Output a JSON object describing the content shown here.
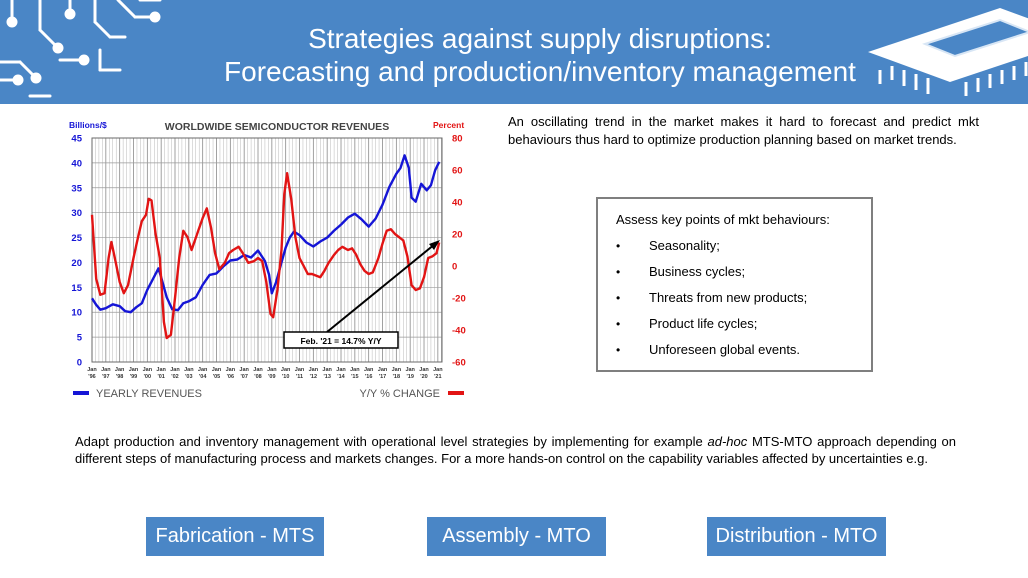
{
  "header": {
    "title_line1": "Strategies against supply disruptions:",
    "title_line2": "Forecasting and production/inventory management"
  },
  "chart_data": {
    "type": "line",
    "title": "WORLDWIDE SEMICONDUCTOR REVENUES",
    "left_axis_label": "Billions/$",
    "right_axis_label": "Percent",
    "left_ylim": [
      0,
      45
    ],
    "left_ticks": [
      "0",
      "5",
      "10",
      "15",
      "20",
      "25",
      "30",
      "35",
      "40",
      "45"
    ],
    "right_ylim": [
      -60,
      80
    ],
    "right_ticks": [
      "-60",
      "-40",
      "-20",
      "0",
      "20",
      "40",
      "60",
      "80"
    ],
    "grid": true,
    "x_year_labels": [
      "'96",
      "'97",
      "'98",
      "'99",
      "'00",
      "'01",
      "'02",
      "'03",
      "'04",
      "'05",
      "'06",
      "'07",
      "'08",
      "'09",
      "'10",
      "'11",
      "'12",
      "'13",
      "'14",
      "'15",
      "'16",
      "'17",
      "'18",
      "'19",
      "'20",
      "'21"
    ],
    "x_month_label": "Jan",
    "legend": {
      "left": "YEARLY REVENUES",
      "right": "Y/Y % CHANGE",
      "placement": "bottom"
    },
    "annotation": "Feb. '21 = 14.7% Y/Y",
    "series": [
      {
        "name": "YEARLY REVENUES",
        "axis": "left",
        "color": "#1515d6",
        "points": [
          [
            1996.0,
            12.8
          ],
          [
            1996.3,
            11.5
          ],
          [
            1996.6,
            10.5
          ],
          [
            1997.0,
            10.8
          ],
          [
            1997.5,
            11.6
          ],
          [
            1998.0,
            11.2
          ],
          [
            1998.4,
            10.2
          ],
          [
            1998.8,
            10.0
          ],
          [
            1999.2,
            11.0
          ],
          [
            1999.6,
            11.8
          ],
          [
            2000.0,
            14.5
          ],
          [
            2000.5,
            17.2
          ],
          [
            2000.8,
            18.8
          ],
          [
            2001.0,
            17.0
          ],
          [
            2001.4,
            13.0
          ],
          [
            2001.8,
            10.6
          ],
          [
            2002.2,
            10.4
          ],
          [
            2002.6,
            11.8
          ],
          [
            2003.0,
            12.2
          ],
          [
            2003.5,
            13.0
          ],
          [
            2004.0,
            15.5
          ],
          [
            2004.5,
            17.5
          ],
          [
            2005.0,
            17.8
          ],
          [
            2005.5,
            19.2
          ],
          [
            2006.0,
            20.4
          ],
          [
            2006.5,
            20.6
          ],
          [
            2007.0,
            21.5
          ],
          [
            2007.5,
            21.0
          ],
          [
            2008.0,
            22.4
          ],
          [
            2008.5,
            20.3
          ],
          [
            2008.8,
            17.5
          ],
          [
            2009.0,
            13.8
          ],
          [
            2009.3,
            16.0
          ],
          [
            2009.7,
            20.0
          ],
          [
            2010.0,
            23.0
          ],
          [
            2010.3,
            25.0
          ],
          [
            2010.6,
            26.2
          ],
          [
            2011.0,
            25.5
          ],
          [
            2011.5,
            24.0
          ],
          [
            2012.0,
            23.2
          ],
          [
            2012.5,
            24.2
          ],
          [
            2013.0,
            25.0
          ],
          [
            2013.5,
            26.4
          ],
          [
            2014.0,
            27.6
          ],
          [
            2014.5,
            29.0
          ],
          [
            2015.0,
            29.8
          ],
          [
            2015.5,
            28.6
          ],
          [
            2016.0,
            27.2
          ],
          [
            2016.5,
            28.8
          ],
          [
            2017.0,
            31.6
          ],
          [
            2017.5,
            35.2
          ],
          [
            2018.0,
            37.8
          ],
          [
            2018.3,
            39.0
          ],
          [
            2018.6,
            41.5
          ],
          [
            2018.9,
            39.0
          ],
          [
            2019.1,
            33.0
          ],
          [
            2019.4,
            32.2
          ],
          [
            2019.8,
            35.8
          ],
          [
            2020.2,
            34.5
          ],
          [
            2020.5,
            35.5
          ],
          [
            2020.8,
            38.5
          ],
          [
            2021.1,
            40.2
          ]
        ]
      },
      {
        "name": "Y/Y % CHANGE",
        "axis": "right",
        "color": "#e21414",
        "points": [
          [
            1996.0,
            32.0
          ],
          [
            1996.3,
            -8.0
          ],
          [
            1996.6,
            -18.0
          ],
          [
            1996.9,
            -17.0
          ],
          [
            1997.2,
            5.0
          ],
          [
            1997.4,
            15.0
          ],
          [
            1997.7,
            3.0
          ],
          [
            1998.0,
            -10.0
          ],
          [
            1998.3,
            -17.0
          ],
          [
            1998.6,
            -12.0
          ],
          [
            1999.0,
            5.0
          ],
          [
            1999.3,
            17.0
          ],
          [
            1999.6,
            28.0
          ],
          [
            1999.9,
            32.0
          ],
          [
            2000.1,
            42.0
          ],
          [
            2000.3,
            41.0
          ],
          [
            2000.6,
            20.0
          ],
          [
            2000.9,
            5.0
          ],
          [
            2001.2,
            -35.0
          ],
          [
            2001.4,
            -45.0
          ],
          [
            2001.7,
            -43.0
          ],
          [
            2002.0,
            -20.0
          ],
          [
            2002.3,
            5.0
          ],
          [
            2002.6,
            22.0
          ],
          [
            2002.9,
            18.0
          ],
          [
            2003.2,
            10.0
          ],
          [
            2003.6,
            20.0
          ],
          [
            2004.0,
            30.0
          ],
          [
            2004.3,
            36.0
          ],
          [
            2004.6,
            24.0
          ],
          [
            2004.9,
            8.0
          ],
          [
            2005.2,
            -2.0
          ],
          [
            2005.6,
            2.0
          ],
          [
            2005.9,
            8.0
          ],
          [
            2006.2,
            10.0
          ],
          [
            2006.6,
            12.0
          ],
          [
            2006.9,
            8.0
          ],
          [
            2007.3,
            2.0
          ],
          [
            2007.7,
            3.0
          ],
          [
            2008.0,
            5.0
          ],
          [
            2008.3,
            3.0
          ],
          [
            2008.6,
            -10.0
          ],
          [
            2008.9,
            -30.0
          ],
          [
            2009.1,
            -32.0
          ],
          [
            2009.4,
            -15.0
          ],
          [
            2009.7,
            10.0
          ],
          [
            2009.9,
            45.0
          ],
          [
            2010.1,
            58.0
          ],
          [
            2010.4,
            42.0
          ],
          [
            2010.7,
            18.0
          ],
          [
            2011.0,
            5.0
          ],
          [
            2011.3,
            0.0
          ],
          [
            2011.6,
            -5.0
          ],
          [
            2011.9,
            -5.0
          ],
          [
            2012.2,
            -6.0
          ],
          [
            2012.5,
            -7.0
          ],
          [
            2012.8,
            -3.0
          ],
          [
            2013.1,
            2.0
          ],
          [
            2013.5,
            7.0
          ],
          [
            2013.8,
            10.0
          ],
          [
            2014.1,
            12.0
          ],
          [
            2014.5,
            10.0
          ],
          [
            2014.8,
            11.0
          ],
          [
            2015.1,
            7.0
          ],
          [
            2015.4,
            1.0
          ],
          [
            2015.7,
            -3.0
          ],
          [
            2016.0,
            -5.0
          ],
          [
            2016.3,
            -4.0
          ],
          [
            2016.7,
            5.0
          ],
          [
            2017.0,
            14.0
          ],
          [
            2017.3,
            22.0
          ],
          [
            2017.6,
            23.0
          ],
          [
            2017.9,
            20.0
          ],
          [
            2018.2,
            18.0
          ],
          [
            2018.5,
            16.0
          ],
          [
            2018.8,
            6.0
          ],
          [
            2019.1,
            -12.0
          ],
          [
            2019.4,
            -15.0
          ],
          [
            2019.7,
            -14.0
          ],
          [
            2020.0,
            -7.0
          ],
          [
            2020.3,
            5.0
          ],
          [
            2020.6,
            6.0
          ],
          [
            2020.9,
            8.0
          ],
          [
            2021.1,
            14.7
          ]
        ]
      }
    ]
  },
  "intro_text": "An oscillating trend in the market makes it hard to forecast and predict mkt behaviours thus hard to optimize production planning based on market trends.",
  "key_points": {
    "title": "Assess key points of mkt behaviours:",
    "items": [
      "Seasonality;",
      "Business cycles;",
      "Threats from new products;",
      "Product life cycles;",
      "Unforeseen global events."
    ]
  },
  "bottom_text": {
    "before": "Adapt production and inventory management with operational level strategies by implementing for example ",
    "emphasis": "ad-hoc",
    "after": " MTS-MTO approach depending on different steps of manufacturing process and markets changes. For a more hands-on control on the capability variables affected by uncertainties e.g."
  },
  "buttons": {
    "fabrication": "Fabrication - MTS",
    "assembly": "Assembly - MTO",
    "distribution": "Distribution - MTO"
  },
  "colors": {
    "banner": "#4a86c6",
    "button": "#4a86c6",
    "revenue_line": "#1515d6",
    "change_line": "#e21414",
    "title_accent": "#e21414"
  }
}
